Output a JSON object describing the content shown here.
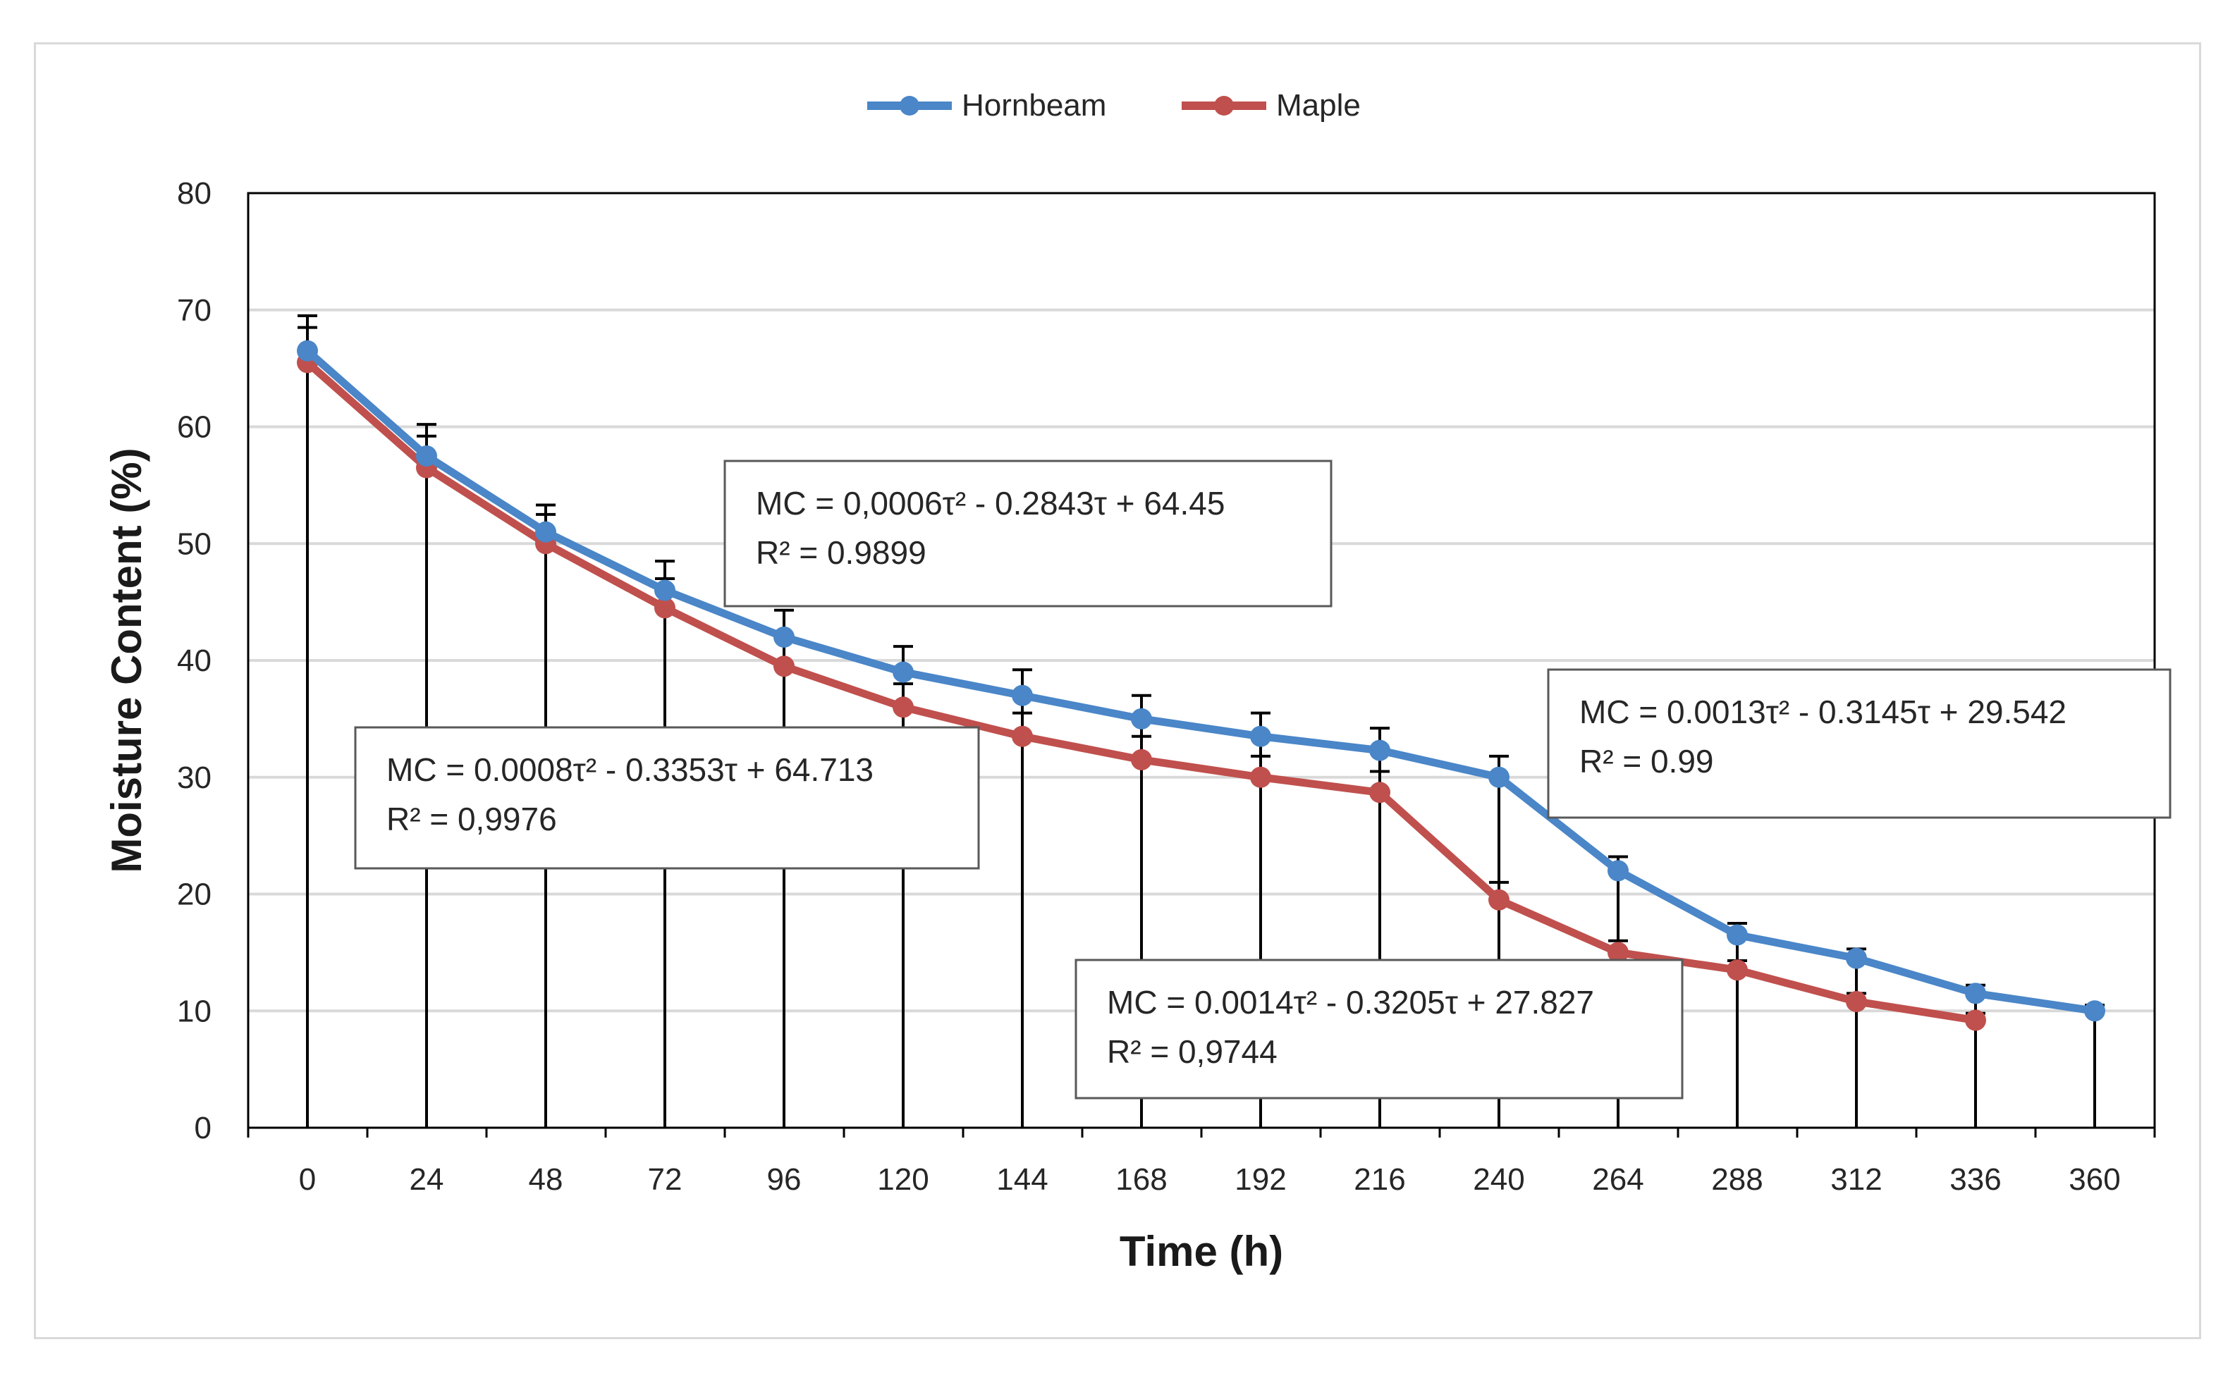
{
  "chart_data": {
    "type": "line",
    "title": "",
    "xlabel": "Time (h)",
    "ylabel": "Moisture Content (%)",
    "xlim": [
      0,
      360
    ],
    "ylim": [
      0,
      80
    ],
    "yticks": [
      0,
      10,
      20,
      30,
      40,
      50,
      60,
      70,
      80
    ],
    "categories": [
      "0",
      "24",
      "48",
      "72",
      "96",
      "120",
      "144",
      "168",
      "192",
      "216",
      "240",
      "264",
      "288",
      "312",
      "336",
      "360"
    ],
    "grid": true,
    "legend_position": "top-center",
    "series": [
      {
        "name": "Hornbeam",
        "color": "#4a86c8",
        "x": [
          0,
          24,
          48,
          72,
          96,
          120,
          144,
          168,
          192,
          216,
          240,
          264,
          288,
          312,
          336,
          360
        ],
        "y": [
          66.5,
          57.5,
          51,
          46,
          42,
          39,
          37,
          35,
          33.5,
          32.3,
          30,
          22,
          16.5,
          14.5,
          11.5,
          10
        ],
        "err_upper": [
          69.5,
          60.2,
          53.3,
          48.5,
          44.3,
          41.2,
          39.2,
          37,
          35.5,
          34.2,
          31.8,
          23.2,
          17.5,
          15.3,
          12.2,
          10.5
        ],
        "err_lower": [
          0,
          0,
          0,
          0,
          0,
          0,
          0,
          0,
          0,
          0,
          0,
          0,
          0,
          0,
          0,
          0
        ]
      },
      {
        "name": "Maple",
        "color": "#c0504d",
        "x": [
          0,
          24,
          48,
          72,
          96,
          120,
          144,
          168,
          192,
          216,
          240,
          264,
          288,
          312,
          336
        ],
        "y": [
          65.5,
          56.5,
          50,
          44.5,
          39.5,
          36,
          33.5,
          31.5,
          30,
          28.7,
          19.5,
          15,
          13.5,
          10.8,
          9.2
        ],
        "err_upper": [
          68.5,
          59.2,
          52.5,
          47,
          41.8,
          38,
          35.5,
          33.5,
          31.8,
          30.5,
          21,
          16,
          14.3,
          11.5,
          9.8
        ],
        "err_lower": [
          0,
          0,
          0,
          0,
          0,
          0,
          0,
          0,
          0,
          0,
          0,
          0,
          0,
          0,
          0
        ]
      }
    ],
    "annotations": [
      {
        "id": "eq-hornbeam-1",
        "line1": "MC = 0,0006τ² - 0.2843τ + 64.45",
        "line2": "R² = 0.9899"
      },
      {
        "id": "eq-maple-1",
        "line1": "MC = 0.0008τ² - 0.3353τ + 64.713",
        "line2": "R² = 0,9976"
      },
      {
        "id": "eq-hornbeam-2",
        "line1": "MC = 0.0013τ² - 0.3145τ + 29.542",
        "line2": "R² = 0.99"
      },
      {
        "id": "eq-maple-2",
        "line1": "MC = 0.0014τ² - 0.3205τ + 27.827",
        "line2": "R² = 0,9744"
      }
    ]
  }
}
